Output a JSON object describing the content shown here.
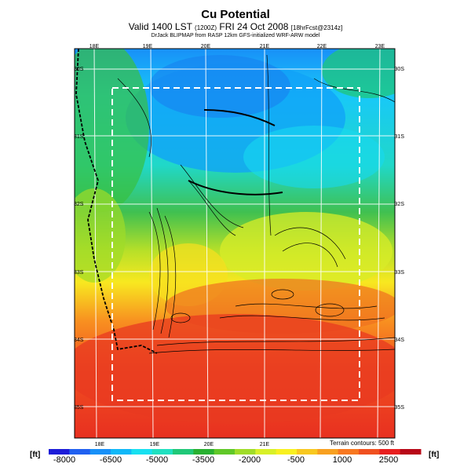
{
  "title": "Cu Potential",
  "subtitle_main": "Valid 1400 LST",
  "subtitle_code": "(1200Z)",
  "subtitle_date": "FRI 24 Oct 2008",
  "subtitle_extra": "[18hrFcst@2314z]",
  "credit": "DrJack BLIPMAP from RASP 12km GFS-initialized WRF-ARW model",
  "terrain_note": "Terrain contours: 500 ft",
  "unit_left": "[ft]",
  "unit_right": "[ft]",
  "lon_top": [
    "18E",
    "19E",
    "20E",
    "21E",
    "22E",
    "23E"
  ],
  "lon_bottom": [
    "18E",
    "19E",
    "20E",
    "21E"
  ],
  "lat_left": [
    "30S",
    "31S",
    "32S",
    "33S",
    "34S",
    "35S"
  ],
  "lat_right": [
    "30S",
    "31S",
    "32S",
    "33S",
    "34S",
    "35S"
  ],
  "colorbar": {
    "labels": [
      "-8000",
      "-6500",
      "-5000",
      "-3500",
      "-2000",
      "-500",
      "1000",
      "2500"
    ],
    "colors": [
      "#1c1cd8",
      "#2060f0",
      "#1890f8",
      "#10b8f8",
      "#18e0f0",
      "#20e0c0",
      "#20c878",
      "#28b030",
      "#60c828",
      "#a0dc28",
      "#d8f028",
      "#f8f020",
      "#f8c820",
      "#f8a020",
      "#f87820",
      "#f05020",
      "#e82020",
      "#b80818"
    ]
  }
}
